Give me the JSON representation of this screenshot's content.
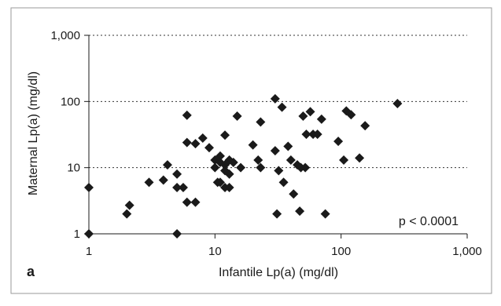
{
  "panel_label": "a",
  "chart_data": {
    "type": "scatter",
    "xscale": "log",
    "yscale": "log",
    "xlim": [
      1,
      1000
    ],
    "ylim": [
      1,
      1000
    ],
    "xlabel": "Infantile Lp(a) (mg/dl)",
    "ylabel": "Maternal Lp(a) (mg/dl)",
    "x_ticks": [
      1,
      10,
      100,
      1000
    ],
    "x_tick_labels": [
      "1",
      "10",
      "100",
      "1,000"
    ],
    "y_ticks": [
      1,
      10,
      100,
      1000
    ],
    "y_tick_labels": [
      "1",
      "10",
      "100",
      "1,000"
    ],
    "grid": "horizontal dotted",
    "annotation": "p < 0.0001",
    "marker": "diamond",
    "marker_color": "#1a1a1a",
    "points": [
      [
        1,
        1
      ],
      [
        1,
        5
      ],
      [
        2,
        2
      ],
      [
        2.1,
        2.7
      ],
      [
        3,
        6
      ],
      [
        3.9,
        6.5
      ],
      [
        4.2,
        11
      ],
      [
        5,
        1
      ],
      [
        5,
        5
      ],
      [
        5,
        8
      ],
      [
        5.6,
        5
      ],
      [
        6,
        24
      ],
      [
        6,
        3
      ],
      [
        6,
        62
      ],
      [
        7,
        23
      ],
      [
        7,
        3
      ],
      [
        8,
        28
      ],
      [
        9,
        20
      ],
      [
        10,
        13
      ],
      [
        10,
        10
      ],
      [
        10.5,
        6
      ],
      [
        11,
        6
      ],
      [
        11,
        15
      ],
      [
        11,
        12
      ],
      [
        12,
        31
      ],
      [
        12,
        11
      ],
      [
        12,
        9
      ],
      [
        12,
        5
      ],
      [
        13,
        13
      ],
      [
        13,
        8
      ],
      [
        13,
        5
      ],
      [
        14,
        12
      ],
      [
        15,
        60
      ],
      [
        16,
        10
      ],
      [
        20,
        22
      ],
      [
        22,
        13
      ],
      [
        23,
        49
      ],
      [
        23,
        10
      ],
      [
        30,
        110
      ],
      [
        30,
        18
      ],
      [
        31,
        2
      ],
      [
        32,
        9
      ],
      [
        34,
        82
      ],
      [
        35,
        6
      ],
      [
        38,
        21
      ],
      [
        40,
        13
      ],
      [
        42,
        4
      ],
      [
        45,
        11
      ],
      [
        47,
        2.2
      ],
      [
        48,
        10
      ],
      [
        50,
        60
      ],
      [
        52,
        10
      ],
      [
        53,
        32
      ],
      [
        57,
        70
      ],
      [
        60,
        32
      ],
      [
        65,
        32
      ],
      [
        70,
        54
      ],
      [
        75,
        2
      ],
      [
        95,
        25
      ],
      [
        105,
        13
      ],
      [
        110,
        72
      ],
      [
        120,
        63
      ],
      [
        140,
        14
      ],
      [
        155,
        43
      ],
      [
        280,
        93
      ]
    ]
  }
}
